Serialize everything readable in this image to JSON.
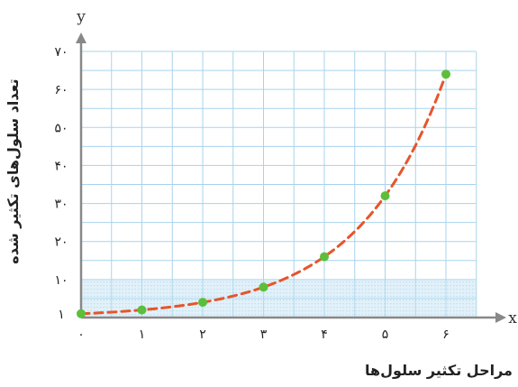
{
  "chart_data": {
    "type": "scatter",
    "xlabel": "مراحل تکثیر سلول‌ها",
    "ylabel": "تعداد سلول‌های تکثیر شده",
    "x_axis_letter": "x",
    "y_axis_letter": "y",
    "x": [
      0,
      1,
      2,
      3,
      4,
      5,
      6
    ],
    "y": [
      1,
      2,
      4,
      8,
      16,
      32,
      64
    ],
    "xlim": [
      0,
      6.4
    ],
    "ylim": [
      0,
      70
    ],
    "x_ticks": [
      0,
      1,
      2,
      3,
      4,
      5,
      6
    ],
    "x_tick_labels": [
      "۰",
      "۱",
      "۲",
      "۳",
      "۴",
      "۵",
      "۶"
    ],
    "y_ticks": [
      1,
      10,
      20,
      30,
      40,
      50,
      60,
      70
    ],
    "y_tick_labels": [
      "۱",
      "۱۰",
      "۲۰",
      "۳۰",
      "۴۰",
      "۵۰",
      "۶۰",
      "۷۰"
    ],
    "trend_line": "dashed",
    "grid": true,
    "colors": {
      "points": "#5cbf3a",
      "trend": "#e8542a",
      "grid": "#a9d3ec",
      "shaded_band": "#bfe1f2",
      "axis": "#888888"
    }
  }
}
